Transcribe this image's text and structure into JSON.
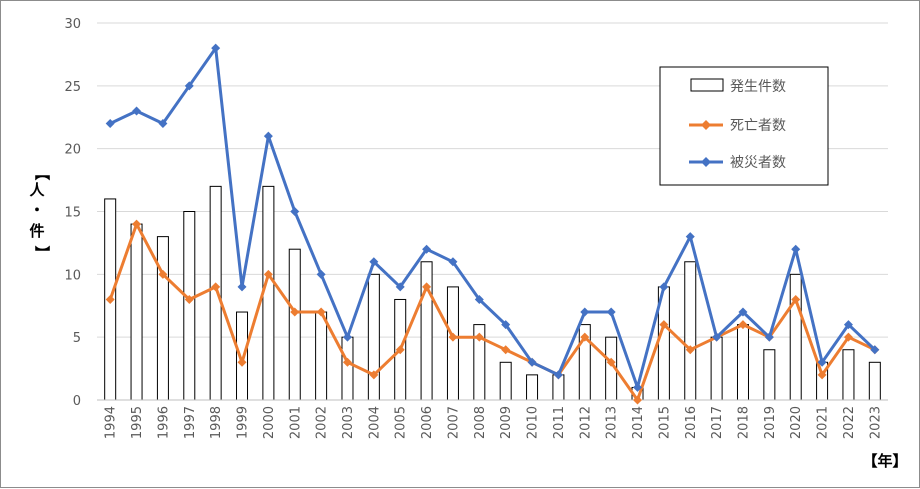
{
  "chart_data": {
    "type": "bar",
    "categories": [
      "1994",
      "1995",
      "1996",
      "1997",
      "1998",
      "1999",
      "2000",
      "2001",
      "2002",
      "2003",
      "2004",
      "2005",
      "2006",
      "2007",
      "2008",
      "2009",
      "2010",
      "2011",
      "2012",
      "2013",
      "2014",
      "2015",
      "2016",
      "2017",
      "2018",
      "2019",
      "2020",
      "2021",
      "2022",
      "2023"
    ],
    "series": [
      {
        "name": "発生件数",
        "kind": "bar",
        "color": "#ffffff",
        "stroke": "#000000",
        "values": [
          16,
          14,
          13,
          15,
          17,
          7,
          17,
          12,
          7,
          5,
          10,
          8,
          11,
          9,
          6,
          3,
          2,
          2,
          6,
          5,
          1,
          9,
          11,
          5,
          6,
          4,
          10,
          3,
          4,
          3
        ]
      },
      {
        "name": "死亡者数",
        "kind": "line",
        "color": "#ED7D31",
        "values": [
          8,
          14,
          10,
          8,
          9,
          3,
          10,
          7,
          7,
          3,
          2,
          4,
          9,
          5,
          5,
          4,
          3,
          2,
          5,
          3,
          0,
          6,
          4,
          5,
          6,
          5,
          8,
          2,
          5,
          4
        ]
      },
      {
        "name": "被災者数",
        "kind": "line",
        "color": "#4472C4",
        "values": [
          22,
          23,
          22,
          25,
          28,
          9,
          21,
          15,
          10,
          5,
          11,
          9,
          12,
          11,
          8,
          6,
          3,
          2,
          7,
          7,
          1,
          9,
          13,
          5,
          7,
          5,
          12,
          3,
          6,
          4
        ]
      }
    ],
    "ylabel": "【人・件】",
    "xlabel": "【年】",
    "ylim": [
      0,
      30
    ],
    "yticks": [
      0,
      5,
      10,
      15,
      20,
      25,
      30
    ],
    "grid": true,
    "legend": "top-right"
  }
}
